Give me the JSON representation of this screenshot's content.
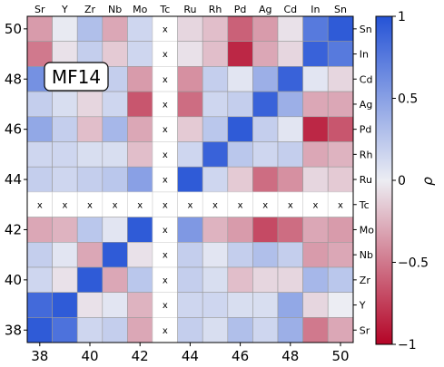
{
  "chart_data": {
    "type": "heatmap",
    "badge": "MF14",
    "elements": [
      "Sr",
      "Y",
      "Zr",
      "Nb",
      "Mo",
      "Tc",
      "Ru",
      "Rh",
      "Pd",
      "Ag",
      "Cd",
      "In",
      "Sn"
    ],
    "x_ticks": [
      38,
      40,
      42,
      44,
      46,
      48,
      50
    ],
    "y_ticks": [
      38,
      40,
      42,
      44,
      46,
      48,
      50
    ],
    "missing_marker": "x",
    "colorbar": {
      "label": "ρ",
      "min": -1,
      "max": 1,
      "ticks": [
        1,
        0.5,
        0,
        -0.5,
        -1
      ],
      "tick_labels": [
        "1",
        "0.5",
        "0",
        "−0.5",
        "−1"
      ],
      "colors": {
        "neg": "#b40426",
        "mid": "#ecedf3",
        "pos": "#2553d6"
      }
    },
    "rows_top_to_bottom": [
      {
        "label": "Sn",
        "values": [
          -0.35,
          0.02,
          0.3,
          -0.3,
          0.15,
          null,
          -0.1,
          -0.2,
          -0.6,
          -0.35,
          -0.05,
          0.75,
          0.95
        ]
      },
      {
        "label": "In",
        "values": [
          -0.5,
          -0.05,
          0.2,
          -0.15,
          0.15,
          null,
          -0.05,
          -0.2,
          -0.85,
          -0.3,
          -0.1,
          0.9,
          0.75
        ]
      },
      {
        "label": "Cd",
        "values": [
          0.6,
          0.3,
          0.1,
          0.2,
          -0.35,
          null,
          -0.4,
          0.2,
          0.05,
          0.4,
          0.9,
          0.05,
          -0.1
        ]
      },
      {
        "label": "Ag",
        "values": [
          0.2,
          0.1,
          -0.1,
          0.15,
          -0.65,
          null,
          -0.55,
          0.15,
          0.2,
          0.9,
          0.4,
          -0.3,
          -0.3
        ]
      },
      {
        "label": "Pd",
        "values": [
          0.45,
          0.2,
          -0.2,
          0.35,
          -0.3,
          null,
          -0.15,
          0.25,
          0.95,
          0.2,
          0.05,
          -0.85,
          -0.65
        ]
      },
      {
        "label": "Rh",
        "values": [
          0.15,
          0.15,
          0.1,
          0.1,
          -0.2,
          null,
          0.15,
          0.9,
          0.25,
          0.15,
          0.2,
          -0.3,
          -0.25
        ]
      },
      {
        "label": "Ru",
        "values": [
          0.2,
          0.15,
          0.2,
          0.25,
          0.5,
          null,
          0.95,
          0.15,
          -0.15,
          -0.55,
          -0.4,
          -0.1,
          -0.15
        ]
      },
      {
        "label": "Tc",
        "values": [
          null,
          null,
          null,
          null,
          null,
          null,
          null,
          null,
          null,
          null,
          null,
          null,
          null
        ]
      },
      {
        "label": "Mo",
        "values": [
          -0.3,
          -0.25,
          0.25,
          0.05,
          0.95,
          null,
          0.55,
          -0.25,
          -0.35,
          -0.7,
          -0.55,
          -0.3,
          -0.35
        ]
      },
      {
        "label": "Nb",
        "values": [
          0.2,
          0.05,
          -0.3,
          0.95,
          -0.05,
          null,
          0.2,
          0.05,
          0.2,
          0.3,
          0.2,
          -0.35,
          -0.3
        ]
      },
      {
        "label": "Zr",
        "values": [
          0.15,
          -0.05,
          0.95,
          -0.3,
          0.25,
          null,
          0.2,
          0.1,
          -0.2,
          -0.1,
          -0.1,
          0.35,
          0.25
        ]
      },
      {
        "label": "Y",
        "values": [
          0.85,
          0.95,
          -0.05,
          0.05,
          -0.25,
          null,
          0.15,
          0.15,
          0.1,
          0.1,
          0.45,
          -0.1,
          0.0
        ]
      },
      {
        "label": "Sr",
        "values": [
          0.95,
          0.8,
          0.15,
          0.2,
          -0.3,
          null,
          0.2,
          0.1,
          0.3,
          0.15,
          0.4,
          -0.5,
          -0.3
        ]
      }
    ]
  }
}
